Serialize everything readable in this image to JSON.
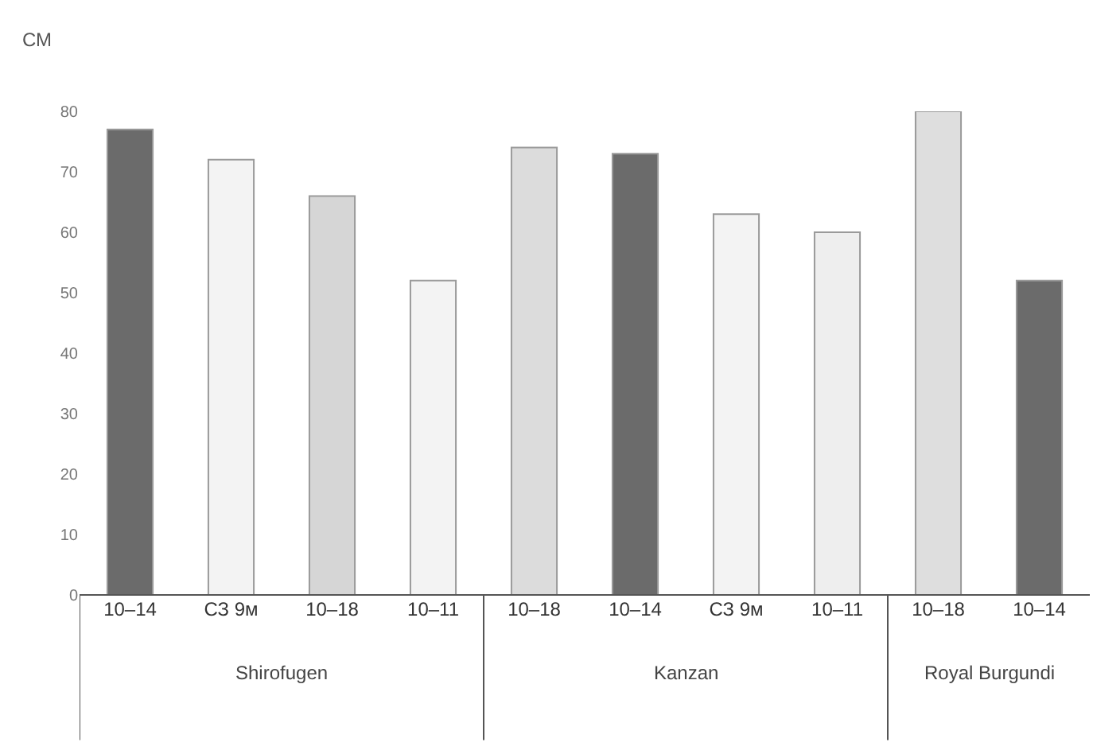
{
  "chart_data": {
    "type": "bar",
    "ylabel": "СМ",
    "categories": [
      "10–14",
      "СЗ 9м",
      "10–18",
      "10–11",
      "10–18",
      "10–14",
      "СЗ 9м",
      "10–11",
      "10–18",
      "10–14"
    ],
    "series": [
      {
        "colors": [
          "#6b6b6b",
          "#f3f3f3",
          "#d6d6d6",
          "#f3f3f3",
          null,
          null,
          null,
          null,
          null,
          null
        ],
        "values": [
          77,
          72,
          66,
          52,
          null,
          null,
          null,
          null,
          null,
          null
        ]
      },
      {
        "colors": [
          null,
          null,
          null,
          null,
          "#dcdcdc",
          "#6b6b6b",
          "#f3f3f3",
          "#eeeeee",
          null,
          null
        ],
        "values": [
          null,
          null,
          null,
          null,
          74,
          73,
          63,
          60,
          null,
          null
        ]
      },
      {
        "colors": [
          null,
          null,
          null,
          null,
          null,
          null,
          null,
          null,
          "#dedede",
          "#6b6b6b"
        ],
        "values": [
          null,
          null,
          null,
          null,
          null,
          null,
          null,
          null,
          80,
          52
        ]
      }
    ],
    "annotations": [
      "Shirofugen",
      "Kanzan",
      "Royal Burgundi"
    ],
    "ylim": [
      0,
      80
    ],
    "yticks": [
      0,
      10,
      20,
      30,
      40,
      50,
      60,
      70,
      80
    ],
    "grid": false
  }
}
